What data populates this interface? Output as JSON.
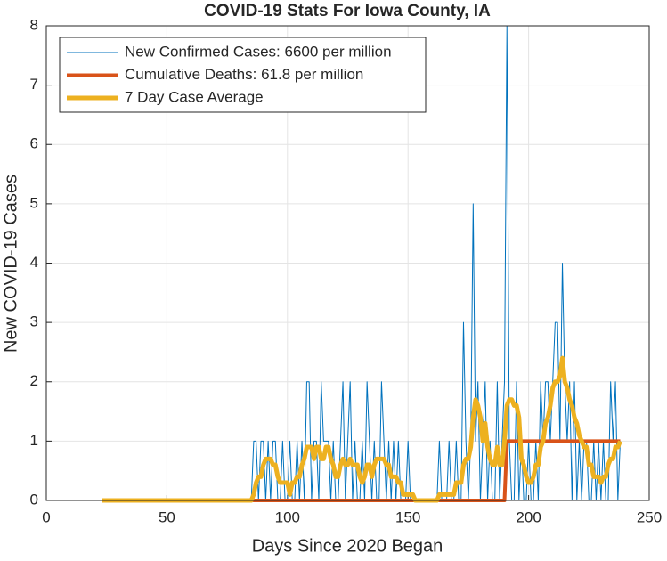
{
  "chart_data": {
    "type": "line",
    "title": "COVID-19 Stats For Iowa County, IA",
    "xlabel": "Days Since 2020 Began",
    "ylabel": "New COVID-19 Cases",
    "xlim": [
      0,
      250
    ],
    "xticks": [
      0,
      50,
      100,
      150,
      200,
      250
    ],
    "ylim": [
      0,
      8
    ],
    "yticks": [
      0,
      1,
      2,
      3,
      4,
      5,
      6,
      7,
      8
    ],
    "grid": true,
    "legend": "upper left",
    "x": [
      23,
      24,
      25,
      26,
      27,
      28,
      29,
      30,
      31,
      32,
      33,
      34,
      35,
      36,
      37,
      38,
      39,
      40,
      41,
      42,
      43,
      44,
      45,
      46,
      47,
      48,
      49,
      50,
      51,
      52,
      53,
      54,
      55,
      56,
      57,
      58,
      59,
      60,
      61,
      62,
      63,
      64,
      65,
      66,
      67,
      68,
      69,
      70,
      71,
      72,
      73,
      74,
      75,
      76,
      77,
      78,
      79,
      80,
      81,
      82,
      83,
      84,
      85,
      86,
      87,
      88,
      89,
      90,
      91,
      92,
      93,
      94,
      95,
      96,
      97,
      98,
      99,
      100,
      101,
      102,
      103,
      104,
      105,
      106,
      107,
      108,
      109,
      110,
      111,
      112,
      113,
      114,
      115,
      116,
      117,
      118,
      119,
      120,
      121,
      122,
      123,
      124,
      125,
      126,
      127,
      128,
      129,
      130,
      131,
      132,
      133,
      134,
      135,
      136,
      137,
      138,
      139,
      140,
      141,
      142,
      143,
      144,
      145,
      146,
      147,
      148,
      149,
      150,
      151,
      152,
      153,
      154,
      155,
      156,
      157,
      158,
      159,
      160,
      161,
      162,
      163,
      164,
      165,
      166,
      167,
      168,
      169,
      170,
      171,
      172,
      173,
      174,
      175,
      176,
      177,
      178,
      179,
      180,
      181,
      182,
      183,
      184,
      185,
      186,
      187,
      188,
      189,
      190,
      191,
      192,
      193,
      194,
      195,
      196,
      197,
      198,
      199,
      200,
      201,
      202,
      203,
      204,
      205,
      206,
      207,
      208,
      209,
      210,
      211,
      212,
      213,
      214,
      215,
      216,
      217,
      218,
      219,
      220,
      221,
      222,
      223,
      224,
      225,
      226,
      227,
      228,
      229,
      230,
      231,
      232,
      233,
      234,
      235,
      236,
      237,
      238
    ],
    "series": [
      {
        "name": "New Confirmed Cases: 6600 per million",
        "color": "#0072bd",
        "width": 1,
        "values": [
          0,
          0,
          0,
          0,
          0,
          0,
          0,
          0,
          0,
          0,
          0,
          0,
          0,
          0,
          0,
          0,
          0,
          0,
          0,
          0,
          0,
          0,
          0,
          0,
          0,
          0,
          0,
          0,
          0,
          0,
          0,
          0,
          0,
          0,
          0,
          0,
          0,
          0,
          0,
          0,
          0,
          0,
          0,
          0,
          0,
          0,
          0,
          0,
          0,
          0,
          0,
          0,
          0,
          0,
          0,
          0,
          0,
          0,
          0,
          0,
          0,
          0,
          0,
          1,
          1,
          0,
          1,
          1,
          0,
          1,
          0,
          1,
          1,
          0,
          0,
          1,
          0,
          0,
          1,
          0,
          0,
          1,
          0,
          1,
          0,
          2,
          2,
          0,
          1,
          1,
          0,
          2,
          1,
          1,
          1,
          0,
          1,
          0,
          0,
          1,
          2,
          0,
          1,
          2,
          0,
          1,
          0,
          0,
          1,
          0,
          2,
          1,
          0,
          1,
          0,
          0,
          2,
          1,
          0,
          1,
          0,
          1,
          0,
          1,
          0,
          0,
          0,
          1,
          0,
          0,
          0,
          0,
          0,
          0,
          0,
          0,
          0,
          0,
          0,
          0,
          1,
          0,
          0,
          0,
          1,
          0,
          0,
          1,
          0,
          0,
          3,
          1,
          0,
          1,
          5,
          1,
          2,
          0,
          1,
          2,
          0,
          1,
          0,
          0,
          2,
          0,
          1,
          2,
          8,
          1,
          0,
          0,
          2,
          0,
          1,
          0,
          0,
          1,
          0,
          0,
          1,
          0,
          2,
          1,
          2,
          2,
          1,
          2,
          3,
          3,
          1,
          4,
          2,
          1,
          2,
          0,
          2,
          0,
          1,
          0,
          1,
          1,
          0,
          0,
          1,
          0,
          1,
          0,
          1,
          0,
          0,
          2,
          1,
          2,
          0,
          1
        ]
      },
      {
        "name": "Cumulative Deaths: 61.8 per million",
        "color": "#d95319",
        "width": 4,
        "values": [
          0,
          0,
          0,
          0,
          0,
          0,
          0,
          0,
          0,
          0,
          0,
          0,
          0,
          0,
          0,
          0,
          0,
          0,
          0,
          0,
          0,
          0,
          0,
          0,
          0,
          0,
          0,
          0,
          0,
          0,
          0,
          0,
          0,
          0,
          0,
          0,
          0,
          0,
          0,
          0,
          0,
          0,
          0,
          0,
          0,
          0,
          0,
          0,
          0,
          0,
          0,
          0,
          0,
          0,
          0,
          0,
          0,
          0,
          0,
          0,
          0,
          0,
          0,
          0,
          0,
          0,
          0,
          0,
          0,
          0,
          0,
          0,
          0,
          0,
          0,
          0,
          0,
          0,
          0,
          0,
          0,
          0,
          0,
          0,
          0,
          0,
          0,
          0,
          0,
          0,
          0,
          0,
          0,
          0,
          0,
          0,
          0,
          0,
          0,
          0,
          0,
          0,
          0,
          0,
          0,
          0,
          0,
          0,
          0,
          0,
          0,
          0,
          0,
          0,
          0,
          0,
          0,
          0,
          0,
          0,
          0,
          0,
          0,
          0,
          0,
          0,
          0,
          0,
          0,
          0,
          0,
          0,
          0,
          0,
          0,
          0,
          0,
          0,
          0,
          0,
          0,
          0,
          0,
          0,
          0,
          0,
          0,
          0,
          0,
          0,
          0,
          0,
          0,
          0,
          0,
          0,
          0,
          0,
          0,
          0,
          0,
          0,
          0,
          0,
          0,
          0,
          0,
          0,
          1,
          1,
          1,
          1,
          1,
          1,
          1,
          1,
          1,
          1,
          1,
          1,
          1,
          1,
          1,
          1,
          1,
          1,
          1,
          1,
          1,
          1,
          1,
          1,
          1,
          1,
          1,
          1,
          1,
          1,
          1,
          1,
          1,
          1,
          1,
          1,
          1,
          1,
          1,
          1,
          1,
          1,
          1,
          1,
          1,
          1,
          1,
          1
        ]
      },
      {
        "name": "7 Day Case Average",
        "color": "#edb120",
        "width": 5,
        "values": [
          0,
          0,
          0,
          0,
          0,
          0,
          0,
          0,
          0,
          0,
          0,
          0,
          0,
          0,
          0,
          0,
          0,
          0,
          0,
          0,
          0,
          0,
          0,
          0,
          0,
          0,
          0,
          0,
          0,
          0,
          0,
          0,
          0,
          0,
          0,
          0,
          0,
          0,
          0,
          0,
          0,
          0,
          0,
          0,
          0,
          0,
          0,
          0,
          0,
          0,
          0,
          0,
          0,
          0,
          0,
          0,
          0,
          0,
          0,
          0,
          0,
          0,
          0,
          0.1,
          0.3,
          0.4,
          0.4,
          0.6,
          0.7,
          0.7,
          0.7,
          0.6,
          0.6,
          0.4,
          0.3,
          0.3,
          0.3,
          0.3,
          0.1,
          0.3,
          0.3,
          0.4,
          0.4,
          0.6,
          0.7,
          0.9,
          0.9,
          0.9,
          0.7,
          0.9,
          0.9,
          0.7,
          0.7,
          0.9,
          0.9,
          0.7,
          0.6,
          0.4,
          0.4,
          0.6,
          0.7,
          0.6,
          0.6,
          0.7,
          0.6,
          0.6,
          0.6,
          0.4,
          0.3,
          0.4,
          0.6,
          0.6,
          0.4,
          0.6,
          0.7,
          0.7,
          0.7,
          0.7,
          0.6,
          0.6,
          0.4,
          0.4,
          0.4,
          0.3,
          0.3,
          0.1,
          0.1,
          0.1,
          0.1,
          0.1,
          0,
          0,
          0,
          0,
          0,
          0,
          0,
          0,
          0,
          0,
          0.1,
          0.1,
          0.1,
          0.1,
          0.1,
          0.1,
          0.1,
          0.3,
          0.3,
          0.3,
          0.6,
          0.7,
          0.7,
          0.9,
          1.4,
          1.7,
          1.6,
          1.4,
          1.0,
          1.3,
          0.9,
          0.7,
          0.6,
          0.6,
          0.9,
          0.6,
          0.6,
          1.0,
          1.6,
          1.7,
          1.7,
          1.6,
          1.6,
          1.4,
          0.7,
          0.6,
          0.4,
          0.3,
          0.3,
          0.4,
          0.6,
          0.6,
          0.9,
          1.0,
          1.3,
          1.4,
          1.6,
          1.9,
          2.0,
          2.0,
          2.1,
          2.4,
          2.0,
          1.9,
          1.7,
          1.6,
          1.4,
          1.3,
          1.1,
          1.0,
          0.9,
          0.9,
          0.6,
          0.6,
          0.4,
          0.4,
          0.4,
          0.3,
          0.4,
          0.4,
          0.6,
          0.7,
          0.7,
          0.9,
          0.9,
          1.0
        ]
      }
    ]
  }
}
